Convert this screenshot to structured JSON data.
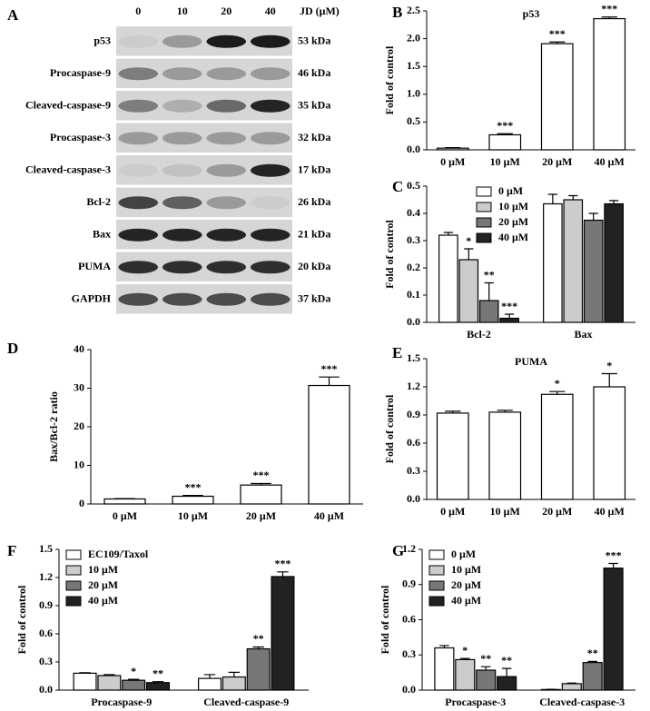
{
  "western_blot": {
    "panel": "A",
    "treatment_label": "JD (μM)",
    "lanes": [
      "0",
      "10",
      "20",
      "40"
    ],
    "rows": [
      {
        "protein": "p53",
        "size": "53 kDa"
      },
      {
        "protein": "Procaspase-9",
        "size": "46 kDa"
      },
      {
        "protein": "Cleaved-caspase-9",
        "size": "35 kDa"
      },
      {
        "protein": "Procaspase-3",
        "size": "32 kDa"
      },
      {
        "protein": "Cleaved-caspase-3",
        "size": "17 kDa"
      },
      {
        "protein": "Bcl-2",
        "size": "26 kDa"
      },
      {
        "protein": "Bax",
        "size": "21 kDa"
      },
      {
        "protein": "PUMA",
        "size": "20 kDa"
      },
      {
        "protein": "GAPDH",
        "size": "37 kDa"
      }
    ]
  },
  "chart_data": [
    {
      "type": "bar",
      "panel": "B",
      "title": "p53",
      "y_label": "Fold of control",
      "color": "#ffffff",
      "categories": [
        "0 μM",
        "10 μM",
        "20 μM",
        "40 μM"
      ],
      "values": [
        0.03,
        0.27,
        1.91,
        2.36
      ],
      "errors": [
        0.01,
        0.02,
        0.03,
        0.03
      ],
      "annotations": [
        null,
        "***",
        "***",
        "***"
      ],
      "ylim": [
        0,
        2.5
      ],
      "yticks": [
        {
          "value": 0,
          "label": "0.0"
        },
        0.5,
        {
          "value": 1,
          "label": "1.0"
        },
        1.5,
        {
          "value": 2,
          "label": "2.0"
        },
        2.5
      ]
    },
    {
      "type": "bar",
      "panel": "C",
      "y_label": "Fold of control",
      "legend": "upper center",
      "categories": [
        "Bcl-2",
        "Bax"
      ],
      "ylim": [
        0,
        0.5
      ],
      "yticks": [
        {
          "value": 0,
          "label": "0.0"
        },
        0.1,
        0.2,
        0.3,
        0.4,
        0.5
      ],
      "series": [
        {
          "name": "0 μM",
          "color": "#ffffff",
          "values": [
            0.32,
            0.435
          ],
          "errors": [
            0.01,
            0.035
          ],
          "annotations": [
            null,
            null
          ]
        },
        {
          "name": "10 μM",
          "color": "#cccccc",
          "values": [
            0.23,
            0.45
          ],
          "errors": [
            0.04,
            0.015
          ],
          "annotations": [
            "*",
            null
          ]
        },
        {
          "name": "20 μM",
          "color": "#777777",
          "values": [
            0.08,
            0.375
          ],
          "errors": [
            0.065,
            0.025
          ],
          "annotations": [
            "**",
            null
          ]
        },
        {
          "name": "40 μM",
          "color": "#222222",
          "values": [
            0.015,
            0.435
          ],
          "errors": [
            0.015,
            0.012
          ],
          "annotations": [
            "***",
            null
          ]
        }
      ]
    },
    {
      "type": "bar",
      "panel": "D",
      "y_label": "Bax/Bcl-2 ratio",
      "color": "#ffffff",
      "categories": [
        "0 μM",
        "10 μM",
        "20 μM",
        "40 μM"
      ],
      "values": [
        1.3,
        2.0,
        4.9,
        30.7
      ],
      "errors": [
        0.1,
        0.2,
        0.4,
        2.2
      ],
      "annotations": [
        null,
        "***",
        "***",
        "***"
      ],
      "ylim": [
        0,
        40
      ],
      "yticks": [
        0,
        10,
        20,
        30,
        40
      ]
    },
    {
      "type": "bar",
      "panel": "E",
      "title": "PUMA",
      "y_label": "Fold of control",
      "color": "#ffffff",
      "categories": [
        "0 μM",
        "10 μM",
        "20 μM",
        "40 μM"
      ],
      "values": [
        0.92,
        0.93,
        1.12,
        1.2
      ],
      "errors": [
        0.02,
        0.02,
        0.03,
        0.14
      ],
      "annotations": [
        null,
        null,
        "*",
        "*"
      ],
      "ylim": [
        0,
        1.5
      ],
      "yticks": [
        {
          "value": 0,
          "label": "0.0"
        },
        0.3,
        0.6,
        0.9,
        1.2,
        1.5
      ]
    },
    {
      "type": "bar",
      "panel": "F",
      "y_label": "Fold of control",
      "legend": "upper left",
      "categories": [
        "Procaspase-9",
        "Cleaved-caspase-9"
      ],
      "ylim": [
        0,
        1.5
      ],
      "yticks": [
        {
          "value": 0,
          "label": "0.0"
        },
        0.3,
        0.6,
        0.9,
        1.2,
        1.5
      ],
      "series": [
        {
          "name": "EC109/Taxol",
          "color": "#ffffff",
          "values": [
            0.18,
            0.125
          ],
          "errors": [
            0.005,
            0.04
          ],
          "annotations": [
            null,
            null
          ]
        },
        {
          "name": "10 μM",
          "color": "#cccccc",
          "values": [
            0.155,
            0.14
          ],
          "errors": [
            0.01,
            0.05
          ],
          "annotations": [
            null,
            null
          ]
        },
        {
          "name": "20 μM",
          "color": "#777777",
          "values": [
            0.105,
            0.44
          ],
          "errors": [
            0.01,
            0.02
          ],
          "annotations": [
            "*",
            "**"
          ]
        },
        {
          "name": "40 μM",
          "color": "#222222",
          "values": [
            0.08,
            1.21
          ],
          "errors": [
            0.01,
            0.05
          ],
          "annotations": [
            "**",
            "***"
          ]
        }
      ]
    },
    {
      "type": "bar",
      "panel": "G",
      "y_label": "Fold of control",
      "legend": "upper left",
      "categories": [
        "Procaspase-3",
        "Cleaved-caspase-3"
      ],
      "ylim": [
        0,
        1.2
      ],
      "yticks": [
        {
          "value": 0,
          "label": "0.0"
        },
        0.3,
        0.6,
        0.9,
        1.2
      ],
      "series": [
        {
          "name": "0 μM",
          "color": "#ffffff",
          "values": [
            0.36,
            0.005
          ],
          "errors": [
            0.02,
            0.002
          ],
          "annotations": [
            null,
            null
          ]
        },
        {
          "name": "10 μM",
          "color": "#cccccc",
          "values": [
            0.26,
            0.055
          ],
          "errors": [
            0.01,
            0.005
          ],
          "annotations": [
            "*",
            null
          ]
        },
        {
          "name": "20 μM",
          "color": "#777777",
          "values": [
            0.17,
            0.235
          ],
          "errors": [
            0.03,
            0.01
          ],
          "annotations": [
            "**",
            "**"
          ]
        },
        {
          "name": "40 μM",
          "color": "#222222",
          "values": [
            0.115,
            1.04
          ],
          "errors": [
            0.07,
            0.04
          ],
          "annotations": [
            "**",
            "***"
          ]
        }
      ]
    }
  ]
}
